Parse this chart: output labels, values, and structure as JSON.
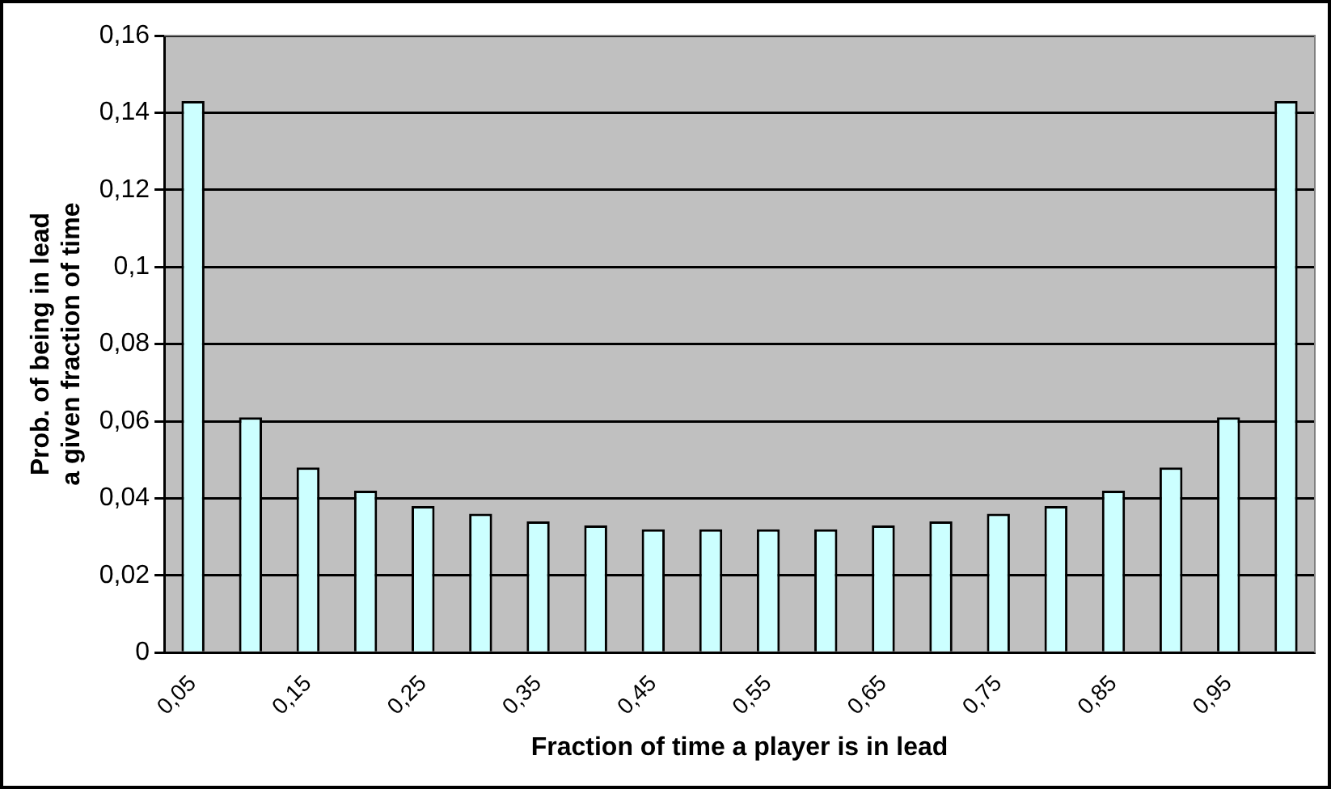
{
  "chart_data": {
    "type": "bar",
    "xlabel": "Fraction of time a player is in lead",
    "ylabel": "Prob. of being in lead a given fraction of time",
    "categories": [
      "0,05",
      null,
      "0,15",
      null,
      "0,25",
      null,
      "0,35",
      null,
      "0,45",
      null,
      "0,55",
      null,
      "0,65",
      null,
      "0,75",
      null,
      "0,85",
      null,
      "0,95",
      null
    ],
    "values": [
      0.143,
      0.061,
      0.048,
      0.042,
      0.038,
      0.036,
      0.034,
      0.033,
      0.032,
      0.032,
      0.032,
      0.032,
      0.033,
      0.034,
      0.036,
      0.038,
      0.042,
      0.048,
      0.061,
      0.143
    ],
    "color": "#ccffff",
    "ylim": [
      0,
      0.16
    ],
    "yticks": [
      {
        "value": 0,
        "label": "0"
      },
      {
        "value": 0.02,
        "label": "0,02"
      },
      {
        "value": 0.04,
        "label": "0,04"
      },
      {
        "value": 0.06,
        "label": "0,06"
      },
      {
        "value": 0.08,
        "label": "0,08"
      },
      {
        "value": 0.1,
        "label": "0,1"
      },
      {
        "value": 0.12,
        "label": "0,12"
      },
      {
        "value": 0.14,
        "label": "0,14"
      },
      {
        "value": 0.16,
        "label": "0,16"
      }
    ],
    "grid": "y",
    "legend": false
  }
}
